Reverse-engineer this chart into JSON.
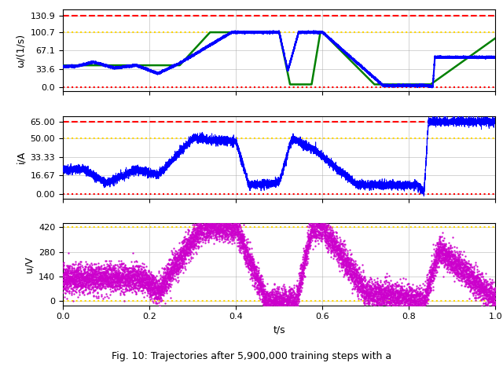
{
  "omega_ylabel": "ω/(1/s)",
  "i_ylabel": "i/A",
  "u_ylabel": "u/V",
  "xlabel": "t/s",
  "omega_yticks": [
    0.0,
    33.6,
    67.1,
    100.7,
    130.9
  ],
  "omega_ytick_labels": [
    "0.0",
    "33.6",
    "67.1",
    "100.7",
    "130.9"
  ],
  "i_yticks": [
    0.0,
    16.67,
    33.33,
    50.0,
    65.0
  ],
  "i_ytick_labels": [
    "0.00",
    "16.67",
    "33.33",
    "50.00",
    "65.00"
  ],
  "u_yticks": [
    0,
    140,
    280,
    420
  ],
  "u_ytick_labels": [
    "0",
    "140",
    "280",
    "420"
  ],
  "xticks": [
    0.0,
    0.2,
    0.4,
    0.6,
    0.8,
    1.0
  ],
  "xlim": [
    0.0,
    1.0
  ],
  "omega_ylim": [
    -8,
    143
  ],
  "i_ylim": [
    -4,
    70
  ],
  "u_ylim": [
    -25,
    445
  ],
  "omega_limit_high": 130.9,
  "omega_limit_low": 0.0,
  "omega_ref_high": 100.7,
  "i_limit_high": 65.0,
  "i_limit_low": 0.0,
  "i_ref": 50.0,
  "u_limit_high": 420,
  "u_limit_low": 0,
  "blue_color": "#0000FF",
  "green_color": "#008000",
  "red_color": "#FF0000",
  "yellow_color": "#FFD700",
  "magenta_color": "#CC00CC",
  "bg_color": "#FFFFFF",
  "grid_color": "#AAAAAA",
  "caption": "Fig. 10: Trajectories after 5,900,000 training steps with a"
}
